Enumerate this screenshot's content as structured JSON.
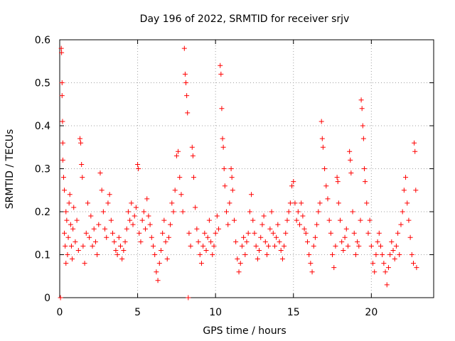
{
  "chart_data": {
    "type": "scatter",
    "title": "Day 196 of 2022, SRMTID for receiver srjv",
    "xlabel": "GPS time / hours",
    "ylabel": "SRMTID / TECUs",
    "xlim": [
      0,
      24
    ],
    "ylim": [
      0,
      0.6
    ],
    "x_ticks": [
      0,
      5,
      10,
      15,
      20
    ],
    "y_ticks": [
      0,
      0.1,
      0.2,
      0.3,
      0.4,
      0.5,
      0.6
    ],
    "x_tick_labels": [
      "0",
      "5",
      "10",
      "15",
      "20"
    ],
    "y_tick_labels": [
      "0",
      "0.1",
      "0.2",
      "0.3",
      "0.4",
      "0.5",
      "0.6"
    ],
    "grid": true,
    "marker": "plus",
    "color": "#ff0000",
    "series": [
      {
        "name": "SRMTID",
        "points": [
          [
            0.05,
            0.0
          ],
          [
            0.1,
            0.58
          ],
          [
            0.12,
            0.57
          ],
          [
            0.15,
            0.5
          ],
          [
            0.15,
            0.47
          ],
          [
            0.18,
            0.41
          ],
          [
            0.2,
            0.36
          ],
          [
            0.2,
            0.32
          ],
          [
            0.25,
            0.28
          ],
          [
            0.3,
            0.25
          ],
          [
            0.3,
            0.15
          ],
          [
            0.35,
            0.12
          ],
          [
            0.4,
            0.08
          ],
          [
            0.4,
            0.2
          ],
          [
            0.45,
            0.18
          ],
          [
            0.5,
            0.1
          ],
          [
            0.55,
            0.14
          ],
          [
            0.6,
            0.22
          ],
          [
            0.65,
            0.24
          ],
          [
            0.7,
            0.17
          ],
          [
            0.75,
            0.12
          ],
          [
            0.8,
            0.09
          ],
          [
            0.85,
            0.16
          ],
          [
            0.9,
            0.21
          ],
          [
            1.0,
            0.13
          ],
          [
            1.1,
            0.18
          ],
          [
            1.2,
            0.11
          ],
          [
            1.3,
            0.37
          ],
          [
            1.35,
            0.36
          ],
          [
            1.4,
            0.31
          ],
          [
            1.45,
            0.28
          ],
          [
            1.5,
            0.12
          ],
          [
            1.6,
            0.08
          ],
          [
            1.7,
            0.15
          ],
          [
            1.8,
            0.22
          ],
          [
            1.9,
            0.14
          ],
          [
            2.0,
            0.19
          ],
          [
            2.1,
            0.12
          ],
          [
            2.2,
            0.16
          ],
          [
            2.3,
            0.13
          ],
          [
            2.4,
            0.1
          ],
          [
            2.5,
            0.17
          ],
          [
            2.6,
            0.29
          ],
          [
            2.7,
            0.25
          ],
          [
            2.8,
            0.2
          ],
          [
            2.9,
            0.16
          ],
          [
            3.0,
            0.14
          ],
          [
            3.1,
            0.22
          ],
          [
            3.2,
            0.24
          ],
          [
            3.3,
            0.18
          ],
          [
            3.4,
            0.15
          ],
          [
            3.5,
            0.13
          ],
          [
            3.6,
            0.11
          ],
          [
            3.7,
            0.1
          ],
          [
            3.8,
            0.14
          ],
          [
            3.9,
            0.12
          ],
          [
            4.0,
            0.09
          ],
          [
            4.1,
            0.11
          ],
          [
            4.2,
            0.13
          ],
          [
            4.3,
            0.16
          ],
          [
            4.4,
            0.2
          ],
          [
            4.5,
            0.18
          ],
          [
            4.6,
            0.22
          ],
          [
            4.7,
            0.17
          ],
          [
            4.8,
            0.19
          ],
          [
            4.9,
            0.21
          ],
          [
            5.0,
            0.31
          ],
          [
            5.05,
            0.3
          ],
          [
            5.1,
            0.15
          ],
          [
            5.2,
            0.13
          ],
          [
            5.3,
            0.18
          ],
          [
            5.4,
            0.2
          ],
          [
            5.5,
            0.16
          ],
          [
            5.6,
            0.23
          ],
          [
            5.7,
            0.19
          ],
          [
            5.8,
            0.17
          ],
          [
            5.9,
            0.14
          ],
          [
            6.0,
            0.12
          ],
          [
            6.1,
            0.1
          ],
          [
            6.2,
            0.06
          ],
          [
            6.3,
            0.04
          ],
          [
            6.4,
            0.08
          ],
          [
            6.5,
            0.11
          ],
          [
            6.6,
            0.15
          ],
          [
            6.7,
            0.18
          ],
          [
            6.8,
            0.13
          ],
          [
            6.9,
            0.09
          ],
          [
            7.0,
            0.14
          ],
          [
            7.1,
            0.17
          ],
          [
            7.2,
            0.22
          ],
          [
            7.3,
            0.2
          ],
          [
            7.4,
            0.25
          ],
          [
            7.5,
            0.33
          ],
          [
            7.6,
            0.34
          ],
          [
            7.7,
            0.28
          ],
          [
            7.8,
            0.24
          ],
          [
            7.9,
            0.2
          ],
          [
            8.0,
            0.58
          ],
          [
            8.05,
            0.52
          ],
          [
            8.1,
            0.5
          ],
          [
            8.15,
            0.47
          ],
          [
            8.2,
            0.43
          ],
          [
            8.25,
            0.0
          ],
          [
            8.3,
            0.15
          ],
          [
            8.4,
            0.12
          ],
          [
            8.5,
            0.35
          ],
          [
            8.55,
            0.33
          ],
          [
            8.6,
            0.28
          ],
          [
            8.7,
            0.21
          ],
          [
            8.8,
            0.16
          ],
          [
            8.9,
            0.13
          ],
          [
            9.0,
            0.1
          ],
          [
            9.1,
            0.08
          ],
          [
            9.2,
            0.12
          ],
          [
            9.3,
            0.15
          ],
          [
            9.4,
            0.11
          ],
          [
            9.5,
            0.14
          ],
          [
            9.6,
            0.18
          ],
          [
            9.7,
            0.13
          ],
          [
            9.8,
            0.1
          ],
          [
            9.9,
            0.12
          ],
          [
            10.0,
            0.15
          ],
          [
            10.1,
            0.19
          ],
          [
            10.2,
            0.16
          ],
          [
            10.3,
            0.54
          ],
          [
            10.35,
            0.52
          ],
          [
            10.4,
            0.44
          ],
          [
            10.45,
            0.37
          ],
          [
            10.5,
            0.35
          ],
          [
            10.55,
            0.3
          ],
          [
            10.6,
            0.26
          ],
          [
            10.7,
            0.2
          ],
          [
            10.8,
            0.17
          ],
          [
            10.9,
            0.22
          ],
          [
            11.0,
            0.3
          ],
          [
            11.05,
            0.28
          ],
          [
            11.1,
            0.25
          ],
          [
            11.2,
            0.18
          ],
          [
            11.3,
            0.13
          ],
          [
            11.4,
            0.09
          ],
          [
            11.5,
            0.06
          ],
          [
            11.6,
            0.08
          ],
          [
            11.7,
            0.12
          ],
          [
            11.8,
            0.14
          ],
          [
            11.9,
            0.1
          ],
          [
            12.0,
            0.13
          ],
          [
            12.1,
            0.15
          ],
          [
            12.2,
            0.2
          ],
          [
            12.3,
            0.24
          ],
          [
            12.4,
            0.18
          ],
          [
            12.5,
            0.15
          ],
          [
            12.6,
            0.12
          ],
          [
            12.7,
            0.09
          ],
          [
            12.8,
            0.11
          ],
          [
            12.9,
            0.14
          ],
          [
            13.0,
            0.17
          ],
          [
            13.1,
            0.19
          ],
          [
            13.2,
            0.13
          ],
          [
            13.3,
            0.1
          ],
          [
            13.4,
            0.12
          ],
          [
            13.5,
            0.16
          ],
          [
            13.6,
            0.2
          ],
          [
            13.7,
            0.15
          ],
          [
            13.8,
            0.12
          ],
          [
            13.9,
            0.14
          ],
          [
            14.0,
            0.17
          ],
          [
            14.1,
            0.13
          ],
          [
            14.2,
            0.11
          ],
          [
            14.3,
            0.09
          ],
          [
            14.4,
            0.12
          ],
          [
            14.5,
            0.15
          ],
          [
            14.6,
            0.18
          ],
          [
            14.7,
            0.2
          ],
          [
            14.8,
            0.22
          ],
          [
            14.9,
            0.26
          ],
          [
            15.0,
            0.27
          ],
          [
            15.1,
            0.22
          ],
          [
            15.2,
            0.18
          ],
          [
            15.3,
            0.2
          ],
          [
            15.4,
            0.17
          ],
          [
            15.5,
            0.22
          ],
          [
            15.6,
            0.19
          ],
          [
            15.7,
            0.16
          ],
          [
            15.8,
            0.15
          ],
          [
            15.9,
            0.13
          ],
          [
            16.0,
            0.1
          ],
          [
            16.1,
            0.08
          ],
          [
            16.2,
            0.06
          ],
          [
            16.3,
            0.12
          ],
          [
            16.4,
            0.14
          ],
          [
            16.5,
            0.17
          ],
          [
            16.6,
            0.2
          ],
          [
            16.7,
            0.22
          ],
          [
            16.8,
            0.41
          ],
          [
            16.85,
            0.37
          ],
          [
            16.9,
            0.35
          ],
          [
            17.0,
            0.3
          ],
          [
            17.1,
            0.26
          ],
          [
            17.2,
            0.23
          ],
          [
            17.3,
            0.18
          ],
          [
            17.4,
            0.15
          ],
          [
            17.5,
            0.1
          ],
          [
            17.6,
            0.07
          ],
          [
            17.7,
            0.12
          ],
          [
            17.8,
            0.28
          ],
          [
            17.85,
            0.27
          ],
          [
            17.9,
            0.22
          ],
          [
            18.0,
            0.18
          ],
          [
            18.1,
            0.13
          ],
          [
            18.2,
            0.11
          ],
          [
            18.3,
            0.14
          ],
          [
            18.4,
            0.16
          ],
          [
            18.5,
            0.12
          ],
          [
            18.6,
            0.34
          ],
          [
            18.65,
            0.32
          ],
          [
            18.7,
            0.29
          ],
          [
            18.8,
            0.2
          ],
          [
            18.9,
            0.15
          ],
          [
            19.0,
            0.1
          ],
          [
            19.1,
            0.13
          ],
          [
            19.2,
            0.12
          ],
          [
            19.3,
            0.18
          ],
          [
            19.35,
            0.46
          ],
          [
            19.4,
            0.44
          ],
          [
            19.45,
            0.4
          ],
          [
            19.5,
            0.37
          ],
          [
            19.55,
            0.3
          ],
          [
            19.6,
            0.27
          ],
          [
            19.7,
            0.22
          ],
          [
            19.8,
            0.15
          ],
          [
            19.9,
            0.18
          ],
          [
            20.0,
            0.12
          ],
          [
            20.1,
            0.08
          ],
          [
            20.2,
            0.06
          ],
          [
            20.3,
            0.1
          ],
          [
            20.4,
            0.13
          ],
          [
            20.5,
            0.15
          ],
          [
            20.6,
            0.12
          ],
          [
            20.7,
            0.1
          ],
          [
            20.8,
            0.08
          ],
          [
            20.9,
            0.06
          ],
          [
            21.0,
            0.03
          ],
          [
            21.1,
            0.07
          ],
          [
            21.2,
            0.1
          ],
          [
            21.3,
            0.13
          ],
          [
            21.4,
            0.11
          ],
          [
            21.5,
            0.09
          ],
          [
            21.6,
            0.12
          ],
          [
            21.7,
            0.15
          ],
          [
            21.8,
            0.1
          ],
          [
            21.9,
            0.17
          ],
          [
            22.0,
            0.2
          ],
          [
            22.1,
            0.25
          ],
          [
            22.2,
            0.28
          ],
          [
            22.3,
            0.22
          ],
          [
            22.4,
            0.18
          ],
          [
            22.5,
            0.14
          ],
          [
            22.6,
            0.1
          ],
          [
            22.7,
            0.08
          ],
          [
            22.75,
            0.36
          ],
          [
            22.8,
            0.34
          ],
          [
            22.85,
            0.25
          ],
          [
            22.9,
            0.07
          ]
        ]
      }
    ]
  }
}
